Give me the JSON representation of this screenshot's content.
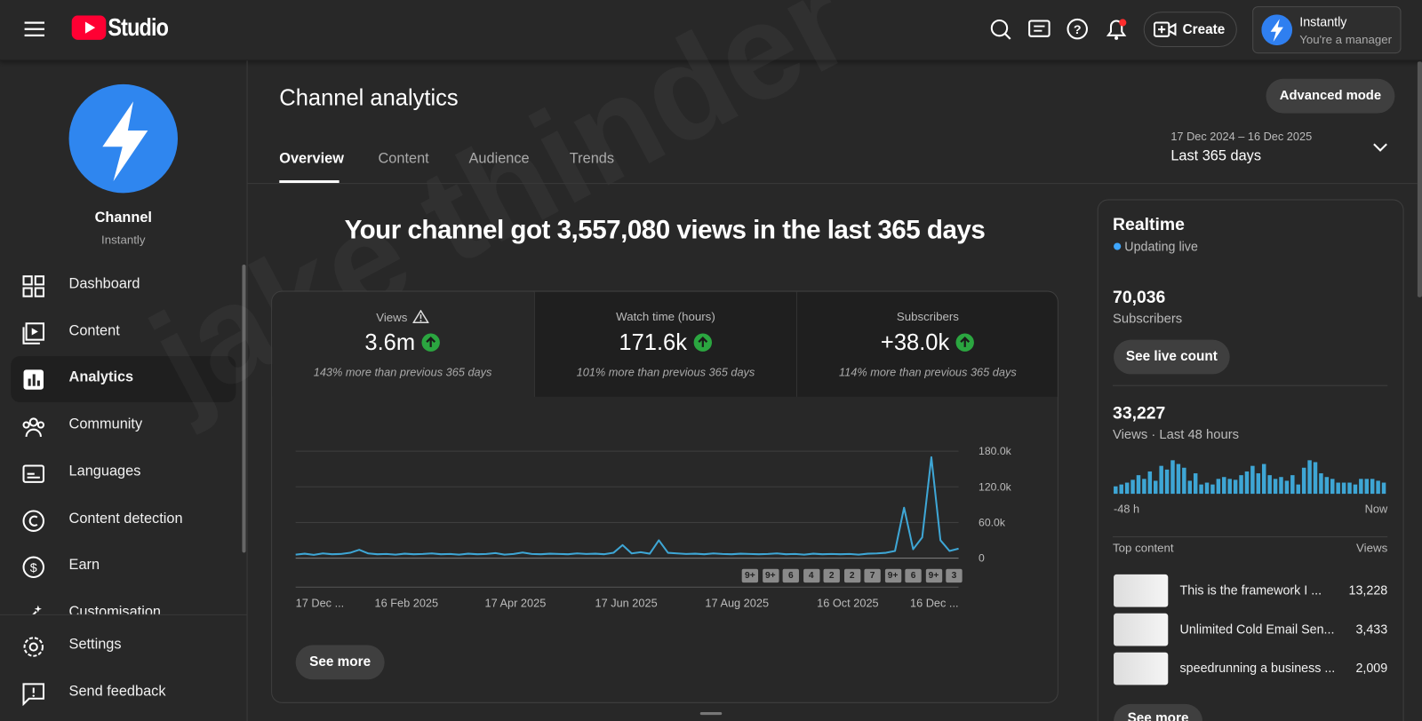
{
  "header": {
    "logo": "Studio",
    "create": "Create",
    "account_name": "Instantly",
    "account_role": "You're a manager"
  },
  "sidebar": {
    "channel_label": "Channel",
    "channel_name": "Instantly",
    "nav": [
      "Dashboard",
      "Content",
      "Analytics",
      "Community",
      "Languages",
      "Content detection",
      "Earn",
      "Customisation"
    ],
    "footer": [
      "Settings",
      "Send feedback"
    ]
  },
  "main": {
    "title": "Channel analytics",
    "advanced": "Advanced mode",
    "tabs": [
      "Overview",
      "Content",
      "Audience",
      "Trends"
    ],
    "date_range": "17 Dec 2024 – 16 Dec 2025",
    "period": "Last 365 days",
    "headline": "Your channel got 3,557,080 views in the last 365 days",
    "see_more": "See more",
    "watermark": "jake thinder"
  },
  "metrics": [
    {
      "label": "Views",
      "value": "3.6m",
      "note": "143% more than previous 365 days"
    },
    {
      "label": "Watch time (hours)",
      "value": "171.6k",
      "note": "101% more than previous 365 days"
    },
    {
      "label": "Subscribers",
      "value": "+38.0k",
      "note": "114% more than previous 365 days"
    }
  ],
  "chart_data": [
    {
      "type": "line",
      "color": "#3ea6d5",
      "values": [
        6000,
        7500,
        5500,
        8000,
        6500,
        7000,
        9000,
        14000,
        8000,
        6500,
        7000,
        6000,
        7500,
        6500,
        7000,
        8000,
        6500,
        7000,
        6000,
        7500,
        6500,
        7000,
        8500,
        6000,
        7000,
        9500,
        7000,
        6500,
        7500,
        7000,
        6500,
        8000,
        7000,
        7500,
        6500,
        9000,
        22000,
        8000,
        10000,
        7500,
        30000,
        9000,
        8000,
        7000,
        7500,
        6500,
        8000,
        7000,
        6500,
        7500,
        7000,
        6500,
        7000,
        8000,
        6500,
        7000,
        6000,
        7500,
        6500,
        7000,
        6500,
        7000,
        6000,
        7500,
        8000,
        9000,
        12000,
        85000,
        15000,
        35000,
        170000,
        30000,
        12000,
        16000
      ],
      "xlim": [
        0,
        73
      ],
      "xticks": [
        {
          "value": 0,
          "label": "17 Dec ..."
        },
        {
          "value": 12.2,
          "label": "16 Feb 2025"
        },
        {
          "value": 24.2,
          "label": "17 Apr 2025"
        },
        {
          "value": 36.4,
          "label": "17 Jun 2025"
        },
        {
          "value": 48.6,
          "label": "17 Aug 2025"
        },
        {
          "value": 60.8,
          "label": "16 Oct 2025"
        },
        {
          "value": 73,
          "label": "16 Dec ..."
        }
      ],
      "ylim": [
        0,
        180000
      ],
      "yticks": [
        0,
        {
          "value": 60000,
          "label": "60.0k"
        },
        {
          "value": 120000,
          "label": "120.0k"
        },
        {
          "value": 180000,
          "label": "180.0k"
        }
      ],
      "grid": true,
      "annotations": [
        "9+",
        "9+",
        "6",
        "4",
        "2",
        "2",
        "7",
        "9+",
        "6",
        "9+",
        "3"
      ]
    },
    {
      "type": "bar",
      "color": "#3ea6d5",
      "values": [
        296,
        370,
        444,
        555,
        740,
        592,
        888,
        518,
        1110,
        962,
        1332,
        1184,
        1036,
        518,
        814,
        370,
        444,
        370,
        592,
        666,
        592,
        555,
        740,
        888,
        1110,
        814,
        1184,
        740,
        592,
        666,
        518,
        740,
        370,
        1036,
        1332,
        1258,
        814,
        666,
        592,
        444,
        444,
        444,
        370,
        592,
        592,
        592,
        518,
        444
      ],
      "x_start": "-48 h",
      "x_end": "Now"
    }
  ],
  "realtime": {
    "title": "Realtime",
    "status": "Updating live",
    "subscribers": "70,036",
    "subscribers_label": "Subscribers",
    "live_count": "See live count",
    "views": "33,227",
    "views_label": "Views · Last 48 hours",
    "top_content": "Top content",
    "views_col": "Views",
    "items": [
      {
        "title": "This is the framework I ...",
        "views": "13,228"
      },
      {
        "title": "Unlimited Cold Email Sen...",
        "views": "3,433"
      },
      {
        "title": "speedrunning a business ...",
        "views": "2,009"
      }
    ],
    "see_more": "See more"
  }
}
